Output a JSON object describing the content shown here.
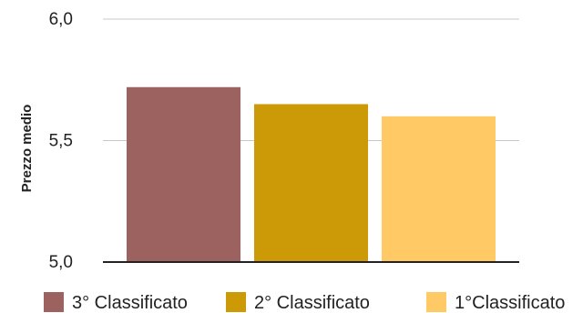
{
  "chart_data": {
    "type": "bar",
    "title": "",
    "xlabel": "",
    "ylabel": "Prezzo medio",
    "ylim": [
      5.0,
      6.0
    ],
    "yticks": [
      {
        "value": 5.0,
        "label": "5,0"
      },
      {
        "value": 5.5,
        "label": "5,5"
      },
      {
        "value": 6.0,
        "label": "6,0"
      }
    ],
    "grid": true,
    "legend_position": "bottom",
    "series": [
      {
        "name": "3° Classificato",
        "value": 5.72,
        "color": "#9b6260"
      },
      {
        "name": "2° Classificato",
        "value": 5.65,
        "color": "#cc9a06"
      },
      {
        "name": "1°Classificato",
        "value": 5.6,
        "color": "#ffc966"
      }
    ]
  }
}
